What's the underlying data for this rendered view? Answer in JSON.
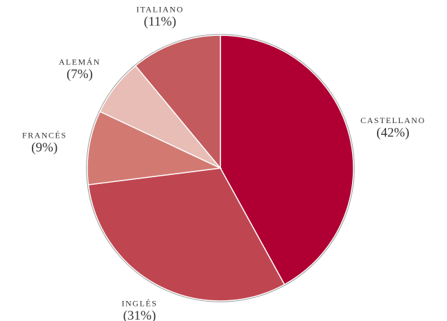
{
  "chart_data": {
    "type": "pie",
    "categories": [
      "CASTELLANO",
      "INGLÉS",
      "FRANCÉS",
      "ALEMÁN",
      "ITALIANO"
    ],
    "values": [
      42,
      31,
      9,
      7,
      11
    ],
    "value_labels": [
      "(42%)",
      "(31%)",
      "(9%)",
      "(7%)",
      "(11%)"
    ],
    "colors": [
      "#b00033",
      "#bf4650",
      "#d27a72",
      "#e8bdb6",
      "#c35a5d"
    ]
  }
}
